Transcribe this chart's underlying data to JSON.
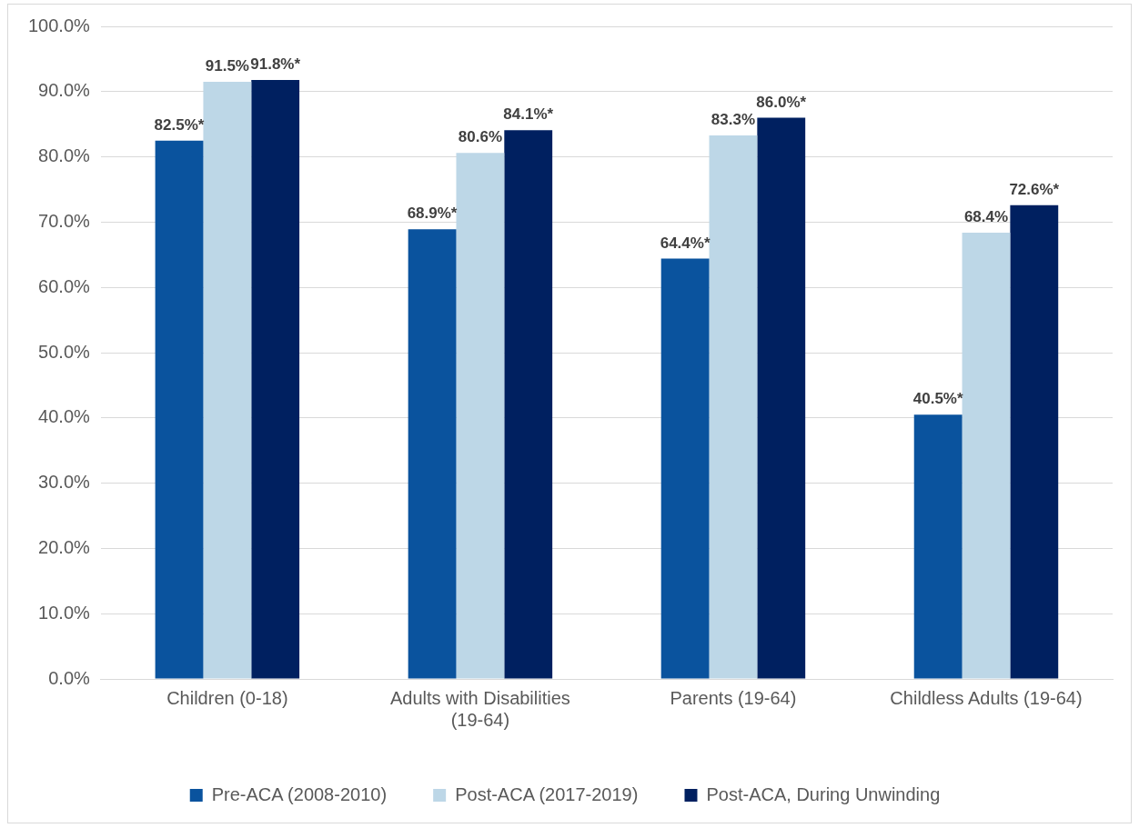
{
  "chart_data": {
    "type": "bar",
    "categories": [
      "Children (0-18)",
      "Adults with Disabilities (19-64)",
      "Parents (19-64)",
      "Childless Adults (19-64)"
    ],
    "series": [
      {
        "name": "Pre-ACA (2008-2010)",
        "color": "#0a539e",
        "values": [
          82.5,
          68.9,
          64.4,
          40.5
        ],
        "value_labels": [
          "82.5%*",
          "68.9%*",
          "64.4%*",
          "40.5%*"
        ]
      },
      {
        "name": "Post-ACA (2017-2019)",
        "color": "#bdd7e7",
        "values": [
          91.5,
          80.6,
          83.3,
          68.4
        ],
        "value_labels": [
          "91.5%",
          "80.6%",
          "83.3%",
          "68.4%"
        ]
      },
      {
        "name": "Post-ACA, During Unwinding",
        "color": "#002060",
        "values": [
          91.8,
          84.1,
          86.0,
          72.6
        ],
        "value_labels": [
          "91.8%*",
          "84.1%*",
          "86.0%*",
          "72.6%*"
        ]
      }
    ],
    "ylim": [
      0,
      100
    ],
    "yticks": [
      {
        "value": 0,
        "label": "0.0%"
      },
      {
        "value": 10,
        "label": "10.0%"
      },
      {
        "value": 20,
        "label": "20.0%"
      },
      {
        "value": 30,
        "label": "30.0%"
      },
      {
        "value": 40,
        "label": "40.0%"
      },
      {
        "value": 50,
        "label": "50.0%"
      },
      {
        "value": 60,
        "label": "60.0%"
      },
      {
        "value": 70,
        "label": "70.0%"
      },
      {
        "value": 80,
        "label": "80.0%"
      },
      {
        "value": 90,
        "label": "90.0%"
      },
      {
        "value": 100,
        "label": "100.0%"
      }
    ],
    "grid": "y",
    "legend": "bottom"
  }
}
